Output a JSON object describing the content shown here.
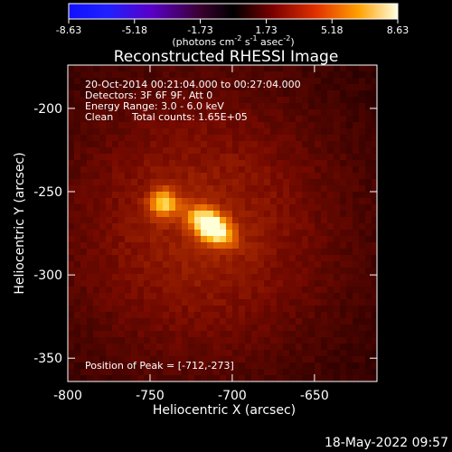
{
  "colorbar": {
    "ticks": [
      "-8.63",
      "-5.18",
      "-1.73",
      "1.73",
      "5.18",
      "8.63"
    ],
    "range": [
      -8.63,
      8.63
    ],
    "units_prefix": "(photons cm",
    "units_exp1": "-2",
    "units_mid": " s",
    "units_exp2": "-1",
    "units_mid2": " asec",
    "units_exp3": "-2",
    "units_suffix": ")"
  },
  "image": {
    "title": "Reconstructed RHESSI Image",
    "info_lines": [
      "20-Oct-2014 00:21:04.000 to 00:27:04.000",
      "Detectors: 3F 6F 9F, Att 0",
      "Energy Range: 3.0 - 6.0 keV"
    ],
    "clean_label": "Clean",
    "total_counts_label": "Total counts: 1.65E+05",
    "peak_label": "Position of Peak = [-712,-273]",
    "xlabel": "Heliocentric X (arcsec)",
    "ylabel": "Heliocentric Y (arcsec)",
    "xrange": [
      -800,
      -612
    ],
    "yrange": [
      -364,
      -174
    ],
    "xticks": [
      "-800",
      "-750",
      "-700",
      "-650"
    ],
    "xtick_values": [
      -800,
      -750,
      -700,
      -650
    ],
    "yticks": [
      "-200",
      "-250",
      "-300",
      "-350"
    ],
    "ytick_values": [
      -200,
      -250,
      -300,
      -350
    ],
    "sources": [
      {
        "x": -713,
        "y": -271,
        "sx": 10,
        "sy": 6,
        "angle": -35,
        "amp": 1.0
      },
      {
        "x": -742,
        "y": -257,
        "sx": 6,
        "sy": 6,
        "angle": 0,
        "amp": 0.62
      }
    ]
  },
  "timestamp": "18-May-2022 09:57"
}
